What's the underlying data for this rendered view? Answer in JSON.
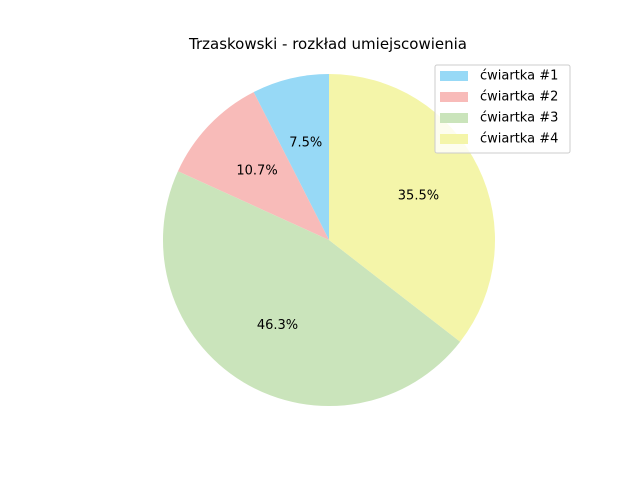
{
  "chart_data": {
    "type": "pie",
    "title": "Trzaskowski - rozkład umiejscowienia",
    "categories": [
      "ćwiartka #1",
      "ćwiartka #2",
      "ćwiartka #3",
      "ćwiartka #4"
    ],
    "values": [
      7.5,
      10.7,
      46.3,
      35.5
    ],
    "value_labels": [
      "7.5%",
      "10.7%",
      "46.3%",
      "35.5%"
    ],
    "colors": [
      "#97d9f6",
      "#f8bbb9",
      "#cae4bb",
      "#f4f5a9"
    ],
    "start_angle_deg": 90,
    "direction": "counterclockwise",
    "legend": {
      "placement": "upper right",
      "entries": [
        "ćwiartka #1",
        "ćwiartka #2",
        "ćwiartka #3",
        "ćwiartka #4"
      ]
    }
  }
}
